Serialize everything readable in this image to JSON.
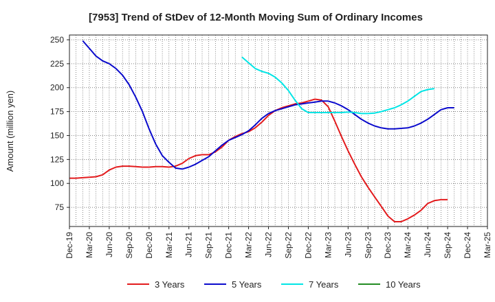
{
  "chart_data": {
    "type": "line",
    "title": "[7953]  Trend of StDev of 12-Month Moving Sum of Ordinary Incomes",
    "xlabel": "",
    "ylabel": "Amount (million yen)",
    "ylim": [
      55,
      255
    ],
    "yticks": [
      75,
      100,
      125,
      150,
      175,
      200,
      225,
      250
    ],
    "xtick_labels": [
      "Dec-19",
      "Mar-20",
      "Jun-20",
      "Sep-20",
      "Dec-20",
      "Mar-21",
      "Jun-21",
      "Sep-21",
      "Dec-21",
      "Mar-22",
      "Jun-22",
      "Sep-22",
      "Dec-22",
      "Mar-23",
      "Jun-23",
      "Sep-23",
      "Dec-23",
      "Mar-24",
      "Jun-24",
      "Sep-24",
      "Dec-24",
      "Mar-25"
    ],
    "x_range_months": [
      0,
      63
    ],
    "grid": true,
    "legend_position": "bottom",
    "series": [
      {
        "name": "3 Years",
        "color": "#e31a1c",
        "start_month": 0,
        "values": [
          105.5,
          105.5,
          106,
          106.5,
          107,
          109,
          114,
          117,
          118,
          118,
          117.5,
          117,
          117,
          117.5,
          117.5,
          117,
          118,
          121,
          126,
          129,
          130,
          130,
          133,
          138,
          145,
          149,
          152,
          154,
          158,
          164,
          171,
          176,
          179,
          181,
          183,
          184,
          186,
          188,
          187,
          180,
          165,
          149,
          134,
          120,
          107,
          96,
          86,
          76,
          66,
          60,
          60,
          63,
          67,
          72,
          79,
          82,
          83,
          83
        ]
      },
      {
        "name": "5 Years",
        "color": "#0a0acc",
        "start_month": 2,
        "values": [
          249,
          241,
          233,
          228,
          225,
          220,
          213,
          203,
          190,
          175,
          157,
          141,
          129,
          122,
          116,
          115,
          117,
          120,
          124,
          128,
          134,
          140,
          145,
          148,
          151,
          155,
          161,
          168,
          173,
          176,
          178,
          180,
          182,
          183,
          184,
          185,
          186,
          186,
          184,
          181,
          177,
          172,
          167,
          163,
          160,
          158,
          157,
          157,
          157.5,
          158,
          160,
          163,
          167,
          172,
          177,
          179,
          179
        ]
      },
      {
        "name": "7 Years",
        "color": "#00e5e5",
        "start_month": 26,
        "values": [
          232,
          226,
          220,
          217,
          215,
          211,
          205,
          197,
          187,
          178,
          174,
          174,
          174,
          174,
          174,
          174,
          174.5,
          174,
          173,
          173,
          173.5,
          175,
          177,
          179,
          182,
          186,
          191,
          196,
          198,
          199
        ]
      },
      {
        "name": "10 Years",
        "color": "#228b22",
        "start_month": 0,
        "values": []
      }
    ]
  }
}
